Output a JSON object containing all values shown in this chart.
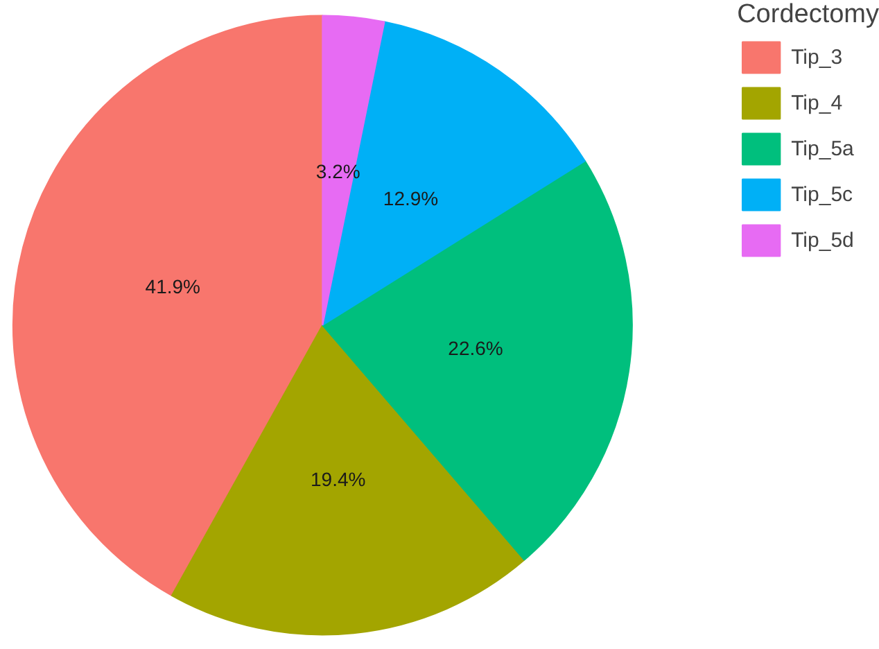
{
  "chart_data": {
    "type": "pie",
    "legend_title": "Cordectomy",
    "categories": [
      "Tip_3",
      "Tip_4",
      "Tip_5a",
      "Tip_5c",
      "Tip_5d"
    ],
    "values": [
      41.9,
      19.4,
      22.6,
      12.9,
      3.2
    ],
    "colors": [
      "#f8766d",
      "#a3a500",
      "#00bf7d",
      "#00b0f6",
      "#e76bf3"
    ],
    "value_labels": [
      "41.9%",
      "19.4%",
      "22.6%",
      "12.9%",
      "3.2%"
    ],
    "legend": "right"
  }
}
